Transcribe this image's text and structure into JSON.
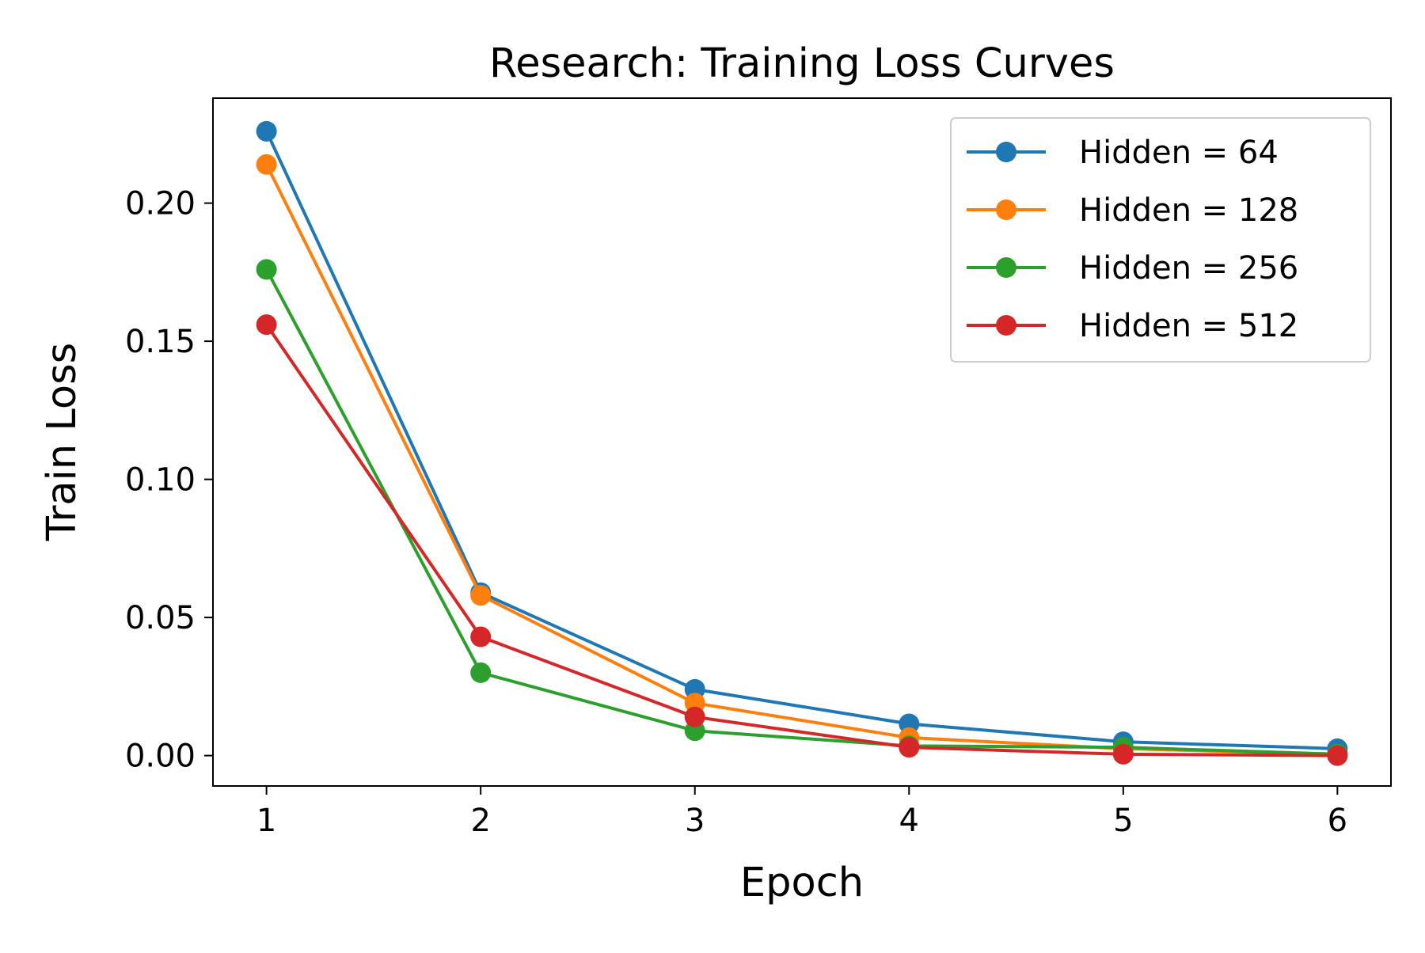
{
  "chart_data": {
    "type": "line",
    "title": "Research: Training Loss Curves",
    "xlabel": "Epoch",
    "ylabel": "Train Loss",
    "x": [
      1,
      2,
      3,
      4,
      5,
      6
    ],
    "xlim": [
      0.75,
      6.25
    ],
    "ylim": [
      -0.011,
      0.238
    ],
    "xticks": [
      1,
      2,
      3,
      4,
      5,
      6
    ],
    "xtick_labels": [
      "1",
      "2",
      "3",
      "4",
      "5",
      "6"
    ],
    "yticks": [
      0.0,
      0.05,
      0.1,
      0.15,
      0.2
    ],
    "ytick_labels": [
      "0.00",
      "0.05",
      "0.10",
      "0.15",
      "0.20"
    ],
    "grid": false,
    "legend_position": "top-right",
    "series": [
      {
        "name": "Hidden = 64",
        "color": "#1f77b4",
        "values": [
          0.226,
          0.059,
          0.024,
          0.0115,
          0.005,
          0.0025
        ]
      },
      {
        "name": "Hidden = 128",
        "color": "#ff7f0e",
        "values": [
          0.214,
          0.058,
          0.019,
          0.0065,
          0.0025,
          0.0005
        ]
      },
      {
        "name": "Hidden = 256",
        "color": "#2ca02c",
        "values": [
          0.176,
          0.03,
          0.009,
          0.0035,
          0.003,
          0.0005
        ]
      },
      {
        "name": "Hidden = 512",
        "color": "#d62728",
        "values": [
          0.156,
          0.043,
          0.014,
          0.003,
          0.0005,
          0.0
        ]
      }
    ]
  }
}
